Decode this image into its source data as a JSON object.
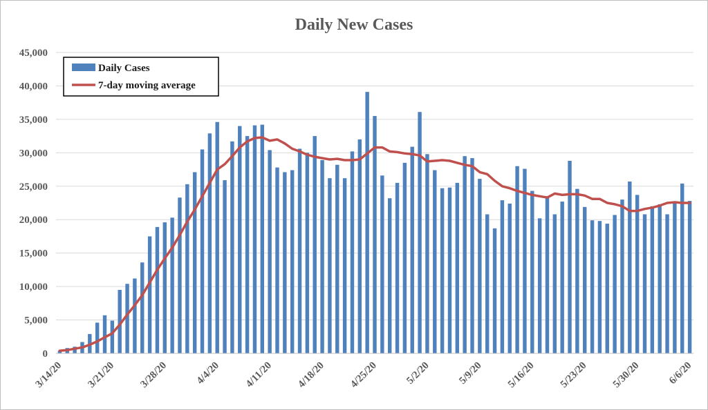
{
  "chart_data": {
    "type": "bar",
    "title": "Daily New Cases",
    "xlabel": "",
    "ylabel": "",
    "ylim": [
      0,
      45000
    ],
    "yticks": [
      "0",
      "5,000",
      "10,000",
      "15,000",
      "20,000",
      "25,000",
      "30,000",
      "35,000",
      "40,000",
      "45,000"
    ],
    "x_tick_labels": [
      "3/14/20",
      "3/21/20",
      "3/28/20",
      "4/4/20",
      "4/11/20",
      "4/18/20",
      "4/25/20",
      "5/2/20",
      "5/9/20",
      "5/16/20",
      "5/23/20",
      "5/30/20",
      "6/6/20"
    ],
    "x_tick_every": 7,
    "grid": true,
    "legend_position": "top-left",
    "categories": [
      "3/14/20",
      "3/15/20",
      "3/16/20",
      "3/17/20",
      "3/18/20",
      "3/19/20",
      "3/20/20",
      "3/21/20",
      "3/22/20",
      "3/23/20",
      "3/24/20",
      "3/25/20",
      "3/26/20",
      "3/27/20",
      "3/28/20",
      "3/29/20",
      "3/30/20",
      "3/31/20",
      "4/1/20",
      "4/2/20",
      "4/3/20",
      "4/4/20",
      "4/5/20",
      "4/6/20",
      "4/7/20",
      "4/8/20",
      "4/9/20",
      "4/10/20",
      "4/11/20",
      "4/12/20",
      "4/13/20",
      "4/14/20",
      "4/15/20",
      "4/16/20",
      "4/17/20",
      "4/18/20",
      "4/19/20",
      "4/20/20",
      "4/21/20",
      "4/22/20",
      "4/23/20",
      "4/24/20",
      "4/25/20",
      "4/26/20",
      "4/27/20",
      "4/28/20",
      "4/29/20",
      "4/30/20",
      "5/1/20",
      "5/2/20",
      "5/3/20",
      "5/4/20",
      "5/5/20",
      "5/6/20",
      "5/7/20",
      "5/8/20",
      "5/9/20",
      "5/10/20",
      "5/11/20",
      "5/12/20",
      "5/13/20",
      "5/14/20",
      "5/15/20",
      "5/16/20",
      "5/17/20",
      "5/18/20",
      "5/19/20",
      "5/20/20",
      "5/21/20",
      "5/22/20",
      "5/23/20",
      "5/24/20",
      "5/25/20",
      "5/26/20",
      "5/27/20",
      "5/28/20",
      "5/29/20",
      "5/30/20",
      "5/31/20",
      "6/1/20",
      "6/2/20",
      "6/3/20",
      "6/4/20",
      "6/5/20",
      "6/6/20"
    ],
    "series": [
      {
        "name": "Daily Cases",
        "type": "bar",
        "color": "#4f81bd",
        "values": [
          400,
          800,
          1000,
          1700,
          2900,
          4600,
          5700,
          4900,
          9500,
          10400,
          11200,
          13600,
          17500,
          18900,
          19600,
          20300,
          23300,
          25300,
          27100,
          30500,
          32900,
          34600,
          25900,
          31700,
          34000,
          32500,
          34100,
          34200,
          30400,
          27800,
          27100,
          27400,
          30600,
          30000,
          32500,
          28900,
          26200,
          28200,
          26200,
          30200,
          32000,
          39100,
          35500,
          26600,
          23200,
          25500,
          28500,
          30900,
          36100,
          29800,
          27400,
          24700,
          24800,
          25500,
          29500,
          29200,
          26100,
          20800,
          18700,
          22900,
          22400,
          28000,
          27600,
          24300,
          20200,
          23500,
          20800,
          22700,
          28800,
          24600,
          21900,
          19900,
          19800,
          19400,
          20700,
          23000,
          25700,
          23700,
          20800,
          22000,
          22300,
          20800,
          22700,
          25400,
          22800
        ]
      },
      {
        "name": "7-day moving average",
        "type": "line",
        "color": "#c0504d",
        "values": [
          400,
          500,
          700,
          900,
          1300,
          1800,
          2400,
          3000,
          4300,
          5800,
          7200,
          8700,
          10600,
          12500,
          14200,
          15800,
          17700,
          19700,
          21500,
          23500,
          25500,
          27500,
          28300,
          29500,
          30800,
          31700,
          32200,
          32300,
          31800,
          32000,
          31400,
          30600,
          30200,
          29700,
          29400,
          29200,
          29000,
          29100,
          28900,
          28900,
          29000,
          29900,
          30800,
          30800,
          30200,
          30100,
          29900,
          29800,
          29600,
          28700,
          28800,
          28900,
          28800,
          28500,
          28200,
          28000,
          27100,
          26800,
          25800,
          25000,
          24700,
          24300,
          24000,
          23700,
          23500,
          23300,
          23900,
          23700,
          23800,
          23800,
          23600,
          23100,
          23100,
          22500,
          22300,
          22000,
          21300,
          21300,
          21600,
          21800,
          22100,
          22500,
          22600,
          22500,
          22500
        ]
      }
    ]
  }
}
